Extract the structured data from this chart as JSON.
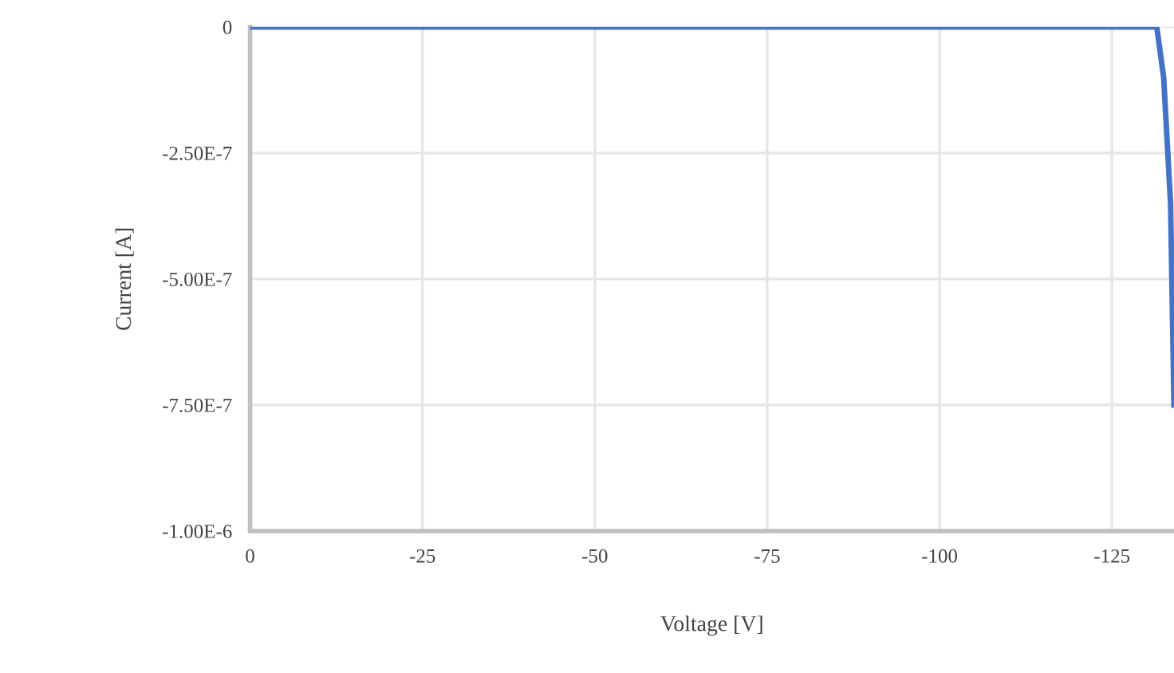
{
  "chart_data": {
    "type": "line",
    "xlabel": "Voltage [V]",
    "ylabel": "Current [A]",
    "x": [
      0,
      -131.5,
      -132.5,
      -133.5,
      -134
    ],
    "series": [
      {
        "color": "#4472c4",
        "values": [
          0,
          0,
          -1e-07,
          -3.5e-07,
          -7.5e-07
        ]
      }
    ],
    "xlim": [
      0,
      -134
    ],
    "xticks": [
      0,
      -25,
      -50,
      -75,
      -100,
      -125
    ],
    "ylim": [
      -1e-06,
      0
    ],
    "yticks": [
      0,
      {
        "value": -2.5e-07,
        "label": "-2.50E-7"
      },
      {
        "value": -5e-07,
        "label": "-5.00E-7"
      },
      {
        "value": -7.5e-07,
        "label": "-7.50E-7"
      },
      {
        "value": -1e-06,
        "label": "-1.00E-6"
      }
    ],
    "grid": true,
    "marker": "none",
    "line_style": "solid"
  }
}
